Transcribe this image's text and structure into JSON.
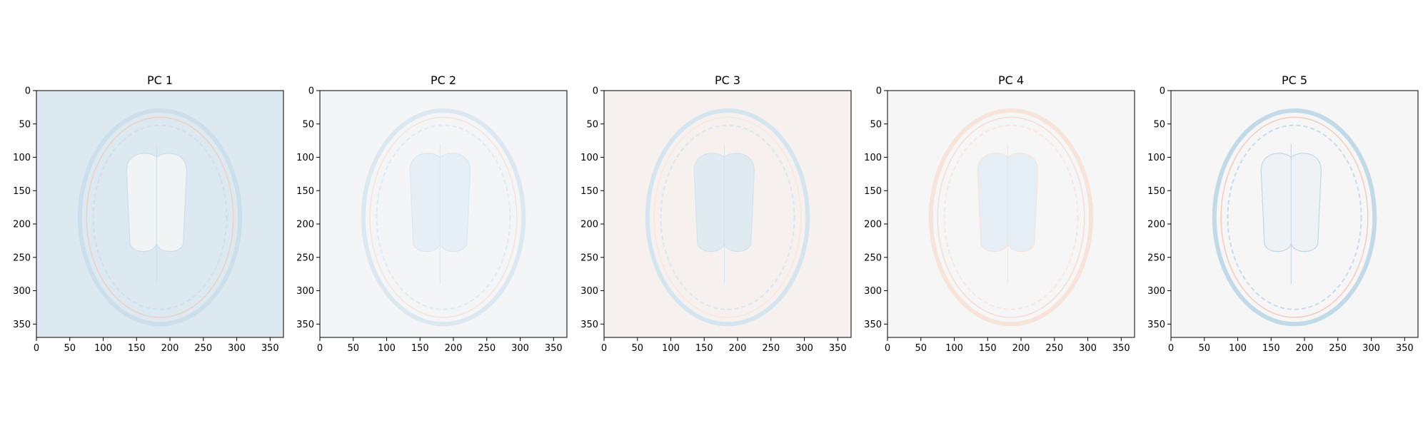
{
  "chart_data": [
    {
      "type": "heatmap",
      "title": "PC 1",
      "xlim": [
        0,
        370
      ],
      "ylim": [
        370,
        0
      ],
      "xticks": [
        0,
        50,
        100,
        150,
        200,
        250,
        300,
        350
      ],
      "yticks": [
        0,
        50,
        100,
        150,
        200,
        250,
        300,
        350
      ],
      "background_color": "#dde9f1",
      "ventricle_color": "#f3f5f6",
      "ring_color": "#c9dde9",
      "accent_color": "#f2c4b0"
    },
    {
      "type": "heatmap",
      "title": "PC 2",
      "xlim": [
        0,
        370
      ],
      "ylim": [
        370,
        0
      ],
      "xticks": [
        0,
        50,
        100,
        150,
        200,
        250,
        300,
        350
      ],
      "yticks": [
        0,
        50,
        100,
        150,
        200,
        250,
        300,
        350
      ],
      "background_color": "#f3f5f6",
      "ventricle_color": "#e6eff5",
      "ring_color": "#d8e7f0",
      "accent_color": "#f6dccf"
    },
    {
      "type": "heatmap",
      "title": "PC 3",
      "xlim": [
        0,
        370
      ],
      "ylim": [
        370,
        0
      ],
      "xticks": [
        0,
        50,
        100,
        150,
        200,
        250,
        300,
        350
      ],
      "yticks": [
        0,
        50,
        100,
        150,
        200,
        250,
        300,
        350
      ],
      "background_color": "#f6f1ee",
      "ventricle_color": "#dfeaf2",
      "ring_color": "#d2e3ee",
      "accent_color": "#f7e3d8"
    },
    {
      "type": "heatmap",
      "title": "PC 4",
      "xlim": [
        0,
        370
      ],
      "ylim": [
        370,
        0
      ],
      "xticks": [
        0,
        50,
        100,
        150,
        200,
        250,
        300,
        350
      ],
      "yticks": [
        0,
        50,
        100,
        150,
        200,
        250,
        300,
        350
      ],
      "background_color": "#f6f6f6",
      "ventricle_color": "#e4eef4",
      "ring_color": "#f6e2d8",
      "accent_color": "#f4d3c4"
    },
    {
      "type": "heatmap",
      "title": "PC 5",
      "xlim": [
        0,
        370
      ],
      "ylim": [
        370,
        0
      ],
      "xticks": [
        0,
        50,
        100,
        150,
        200,
        250,
        300,
        350
      ],
      "yticks": [
        0,
        50,
        100,
        150,
        200,
        250,
        300,
        350
      ],
      "background_color": "#f6f6f6",
      "ventricle_color": "#eef2f5",
      "ring_color": "#bcd6e6",
      "accent_color": "#f0b9a3"
    }
  ]
}
